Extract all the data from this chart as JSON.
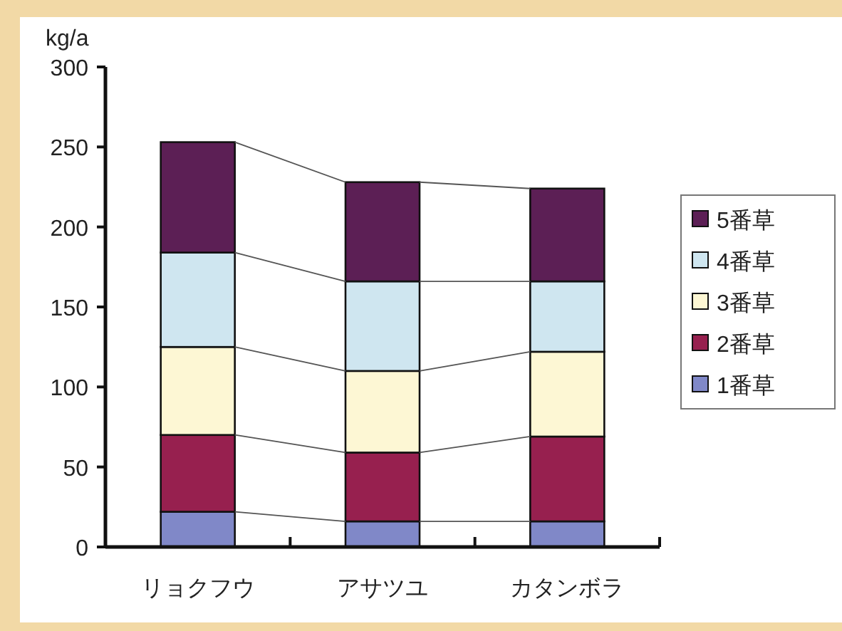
{
  "chart_data": {
    "type": "bar",
    "stacked": true,
    "ylabel": "kg/a",
    "categories": [
      "リョクフウ",
      "アサツユ",
      "カタンボラ"
    ],
    "series": [
      {
        "name": "1番草",
        "color": "#8088c8",
        "values": [
          22,
          16,
          16
        ]
      },
      {
        "name": "2番草",
        "color": "#97204f",
        "values": [
          48,
          43,
          53
        ]
      },
      {
        "name": "3番草",
        "color": "#fdf7d4",
        "values": [
          55,
          51,
          53
        ]
      },
      {
        "name": "4番草",
        "color": "#cfe6f0",
        "values": [
          59,
          56,
          44
        ]
      },
      {
        "name": "5番草",
        "color": "#5c1f55",
        "values": [
          69,
          62,
          58
        ]
      }
    ],
    "ylim": [
      0,
      300
    ],
    "yticks": [
      0,
      50,
      100,
      150,
      200,
      250,
      300
    ],
    "grid": false,
    "legend": "right"
  }
}
